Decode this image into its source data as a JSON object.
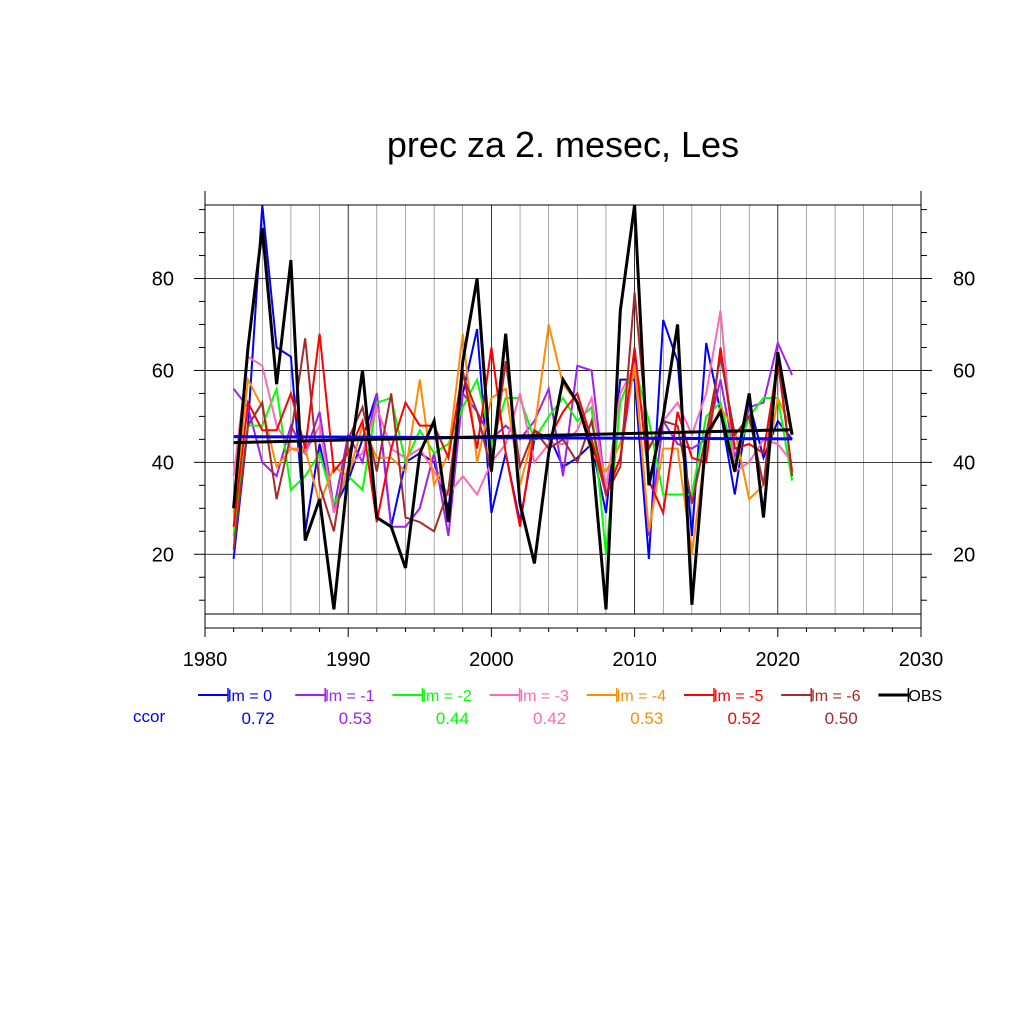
{
  "chart_data": {
    "type": "line",
    "title": "prec za 2. mesec, Les",
    "xlabel": "",
    "ylabel": "",
    "xlim": [
      1980,
      2030
    ],
    "ylim": [
      7,
      96
    ],
    "x_ticks": [
      1980,
      1990,
      2000,
      2010,
      2020,
      2030
    ],
    "y_ticks": [
      20,
      40,
      60,
      80
    ],
    "grid": true,
    "legend_placement": "bottom",
    "x": [
      1982,
      1983,
      1984,
      1985,
      1986,
      1987,
      1988,
      1989,
      1990,
      1991,
      1992,
      1993,
      1994,
      1995,
      1996,
      1997,
      1998,
      1999,
      2000,
      2001,
      2002,
      2003,
      2004,
      2005,
      2006,
      2007,
      2008,
      2009,
      2010,
      2011,
      2012,
      2013,
      2014,
      2015,
      2016,
      2017,
      2018,
      2019,
      2020,
      2021
    ],
    "series": [
      {
        "name": "lm = 0",
        "color": "#0000ff",
        "values": [
          19,
          48,
          96,
          65,
          63,
          25,
          44,
          30,
          36,
          45,
          55,
          26,
          40,
          42,
          40,
          30,
          55,
          69,
          29,
          42,
          27,
          45,
          46,
          39,
          41,
          44,
          29,
          58,
          58,
          19,
          71,
          62,
          24,
          66,
          51,
          33,
          53,
          41,
          49,
          45
        ],
        "ccor": "0.72"
      },
      {
        "name": "lm = -1",
        "color": "#a020f0",
        "values": [
          56,
          52,
          40,
          37,
          48,
          42,
          51,
          30,
          46,
          40,
          55,
          26,
          26,
          30,
          42,
          24,
          55,
          51,
          45,
          48,
          45,
          49,
          56,
          37,
          61,
          60,
          33,
          41,
          62,
          24,
          49,
          44,
          43,
          45,
          58,
          41,
          52,
          53,
          66,
          59
        ],
        "ccor": "0.53"
      },
      {
        "name": "lm = -2",
        "color": "#00ff00",
        "values": [
          24,
          48,
          48,
          56,
          34,
          37,
          42,
          31,
          37,
          34,
          53,
          54,
          40,
          47,
          42,
          44,
          52,
          58,
          44,
          54,
          54,
          45,
          50,
          54,
          49,
          52,
          20,
          53,
          61,
          49,
          33,
          33,
          33,
          50,
          53,
          40,
          50,
          54,
          54,
          36
        ],
        "ccor": "0.44"
      },
      {
        "name": "lm = -3",
        "color": "#ff69b4",
        "values": [
          37,
          63,
          61,
          48,
          43,
          42,
          48,
          29,
          39,
          42,
          52,
          43,
          41,
          43,
          38,
          33,
          37,
          33,
          40,
          44,
          55,
          40,
          44,
          44,
          47,
          54,
          34,
          55,
          61,
          43,
          49,
          53,
          46,
          55,
          73,
          38,
          40,
          45,
          44,
          40
        ],
        "ccor": "0.42"
      },
      {
        "name": "lm = -4",
        "color": "#ff8c00",
        "values": [
          29,
          58,
          52,
          39,
          43,
          43,
          31,
          39,
          37,
          48,
          41,
          41,
          38,
          58,
          35,
          42,
          68,
          40,
          54,
          56,
          35,
          47,
          70,
          57,
          53,
          42,
          38,
          44,
          61,
          25,
          43,
          43,
          20,
          44,
          52,
          47,
          32,
          35,
          54,
          47
        ],
        "ccor": "0.53"
      },
      {
        "name": "lm = -5",
        "color": "#ff0000",
        "values": [
          26,
          53,
          47,
          47,
          55,
          43,
          68,
          38,
          42,
          49,
          27,
          43,
          53,
          48,
          48,
          41,
          60,
          43,
          65,
          42,
          26,
          47,
          45,
          51,
          55,
          45,
          33,
          41,
          65,
          36,
          29,
          51,
          41,
          40,
          65,
          43,
          44,
          42,
          62,
          38
        ],
        "ccor": "0.52"
      },
      {
        "name": "lm = -6",
        "color": "#a52a2a",
        "values": [
          21,
          48,
          53,
          32,
          46,
          67,
          35,
          25,
          45,
          52,
          38,
          55,
          28,
          27,
          25,
          34,
          59,
          51,
          38,
          62,
          39,
          47,
          43,
          45,
          40,
          49,
          33,
          39,
          77,
          43,
          49,
          48,
          31,
          46,
          63,
          46,
          50,
          35,
          64,
          37
        ],
        "ccor": "0.50"
      },
      {
        "name": "OBS",
        "color": "#000000",
        "values": [
          30,
          65,
          91,
          57,
          84,
          23,
          32,
          8,
          38,
          60,
          28,
          26,
          17,
          42,
          49,
          27,
          62,
          80,
          38,
          68,
          31,
          18,
          42,
          58,
          53,
          43,
          8,
          73,
          96,
          35,
          50,
          70,
          9,
          46,
          51,
          38,
          55,
          28,
          64,
          46
        ]
      }
    ],
    "trend_lines": [
      {
        "color": "#0000ff",
        "start": [
          1982,
          45.6
        ],
        "end": [
          2021,
          45.1
        ]
      },
      {
        "color": "#000000",
        "start": [
          1982,
          44.3
        ],
        "end": [
          2021,
          47.1
        ]
      }
    ],
    "ccor_label": "ccor"
  }
}
